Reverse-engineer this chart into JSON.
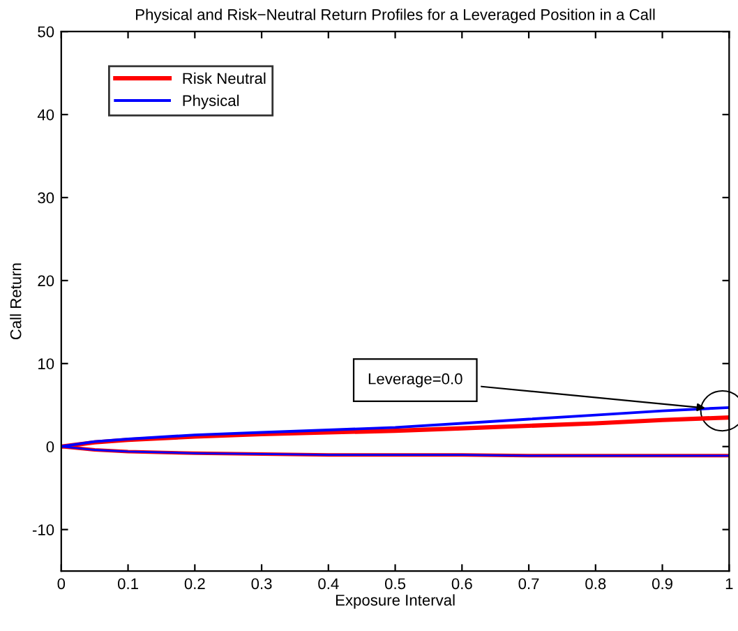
{
  "chart_data": {
    "type": "line",
    "title": "Physical and Risk−Neutral Return Profiles for a Leveraged Position in a Call",
    "xlabel": "Exposure Interval",
    "ylabel": "Call Return",
    "xlim": [
      0,
      1
    ],
    "ylim": [
      -15,
      50
    ],
    "xticks": [
      0,
      0.1,
      0.2,
      0.3,
      0.4,
      0.5,
      0.6,
      0.7,
      0.8,
      0.9,
      1
    ],
    "yticks": [
      -10,
      0,
      10,
      20,
      30,
      40,
      50
    ],
    "grid": false,
    "legend": "top left",
    "marker": "none",
    "line_style": "solid",
    "series": [
      {
        "name": "Risk Neutral",
        "color": "#ff0000",
        "x": [
          0,
          0.05,
          0.1,
          0.2,
          0.3,
          0.4,
          0.5,
          0.6,
          0.7,
          0.8,
          0.9,
          1
        ],
        "values": [
          0,
          0.5,
          0.8,
          1.2,
          1.5,
          1.7,
          1.9,
          2.2,
          2.5,
          2.8,
          3.2,
          3.5
        ]
      },
      {
        "color": "#ff0000",
        "x": [
          0,
          0.05,
          0.1,
          0.2,
          0.3,
          0.4,
          0.5,
          0.6,
          0.7,
          0.8,
          0.9,
          1
        ],
        "values": [
          0,
          -0.4,
          -0.6,
          -0.8,
          -0.9,
          -1.0,
          -1.0,
          -1.0,
          -1.1,
          -1.1,
          -1.1,
          -1.1
        ]
      },
      {
        "name": "Physical",
        "color": "#0000ff",
        "x": [
          0,
          0.05,
          0.1,
          0.2,
          0.3,
          0.4,
          0.5,
          0.6,
          0.7,
          0.8,
          0.9,
          1
        ],
        "values": [
          0,
          0.6,
          0.9,
          1.4,
          1.7,
          2.0,
          2.3,
          2.8,
          3.3,
          3.8,
          4.3,
          4.7
        ]
      },
      {
        "color": "#0000ff",
        "x": [
          0,
          0.05,
          0.1,
          0.2,
          0.3,
          0.4,
          0.5,
          0.6,
          0.7,
          0.8,
          0.9,
          1
        ],
        "values": [
          0,
          -0.4,
          -0.6,
          -0.8,
          -0.9,
          -1.0,
          -1.0,
          -1.0,
          -1.1,
          -1.1,
          -1.1,
          -1.1
        ]
      }
    ],
    "annotations": [
      {
        "text": "Leverage=0.0",
        "x": 0.97,
        "y": 4.6
      }
    ]
  }
}
